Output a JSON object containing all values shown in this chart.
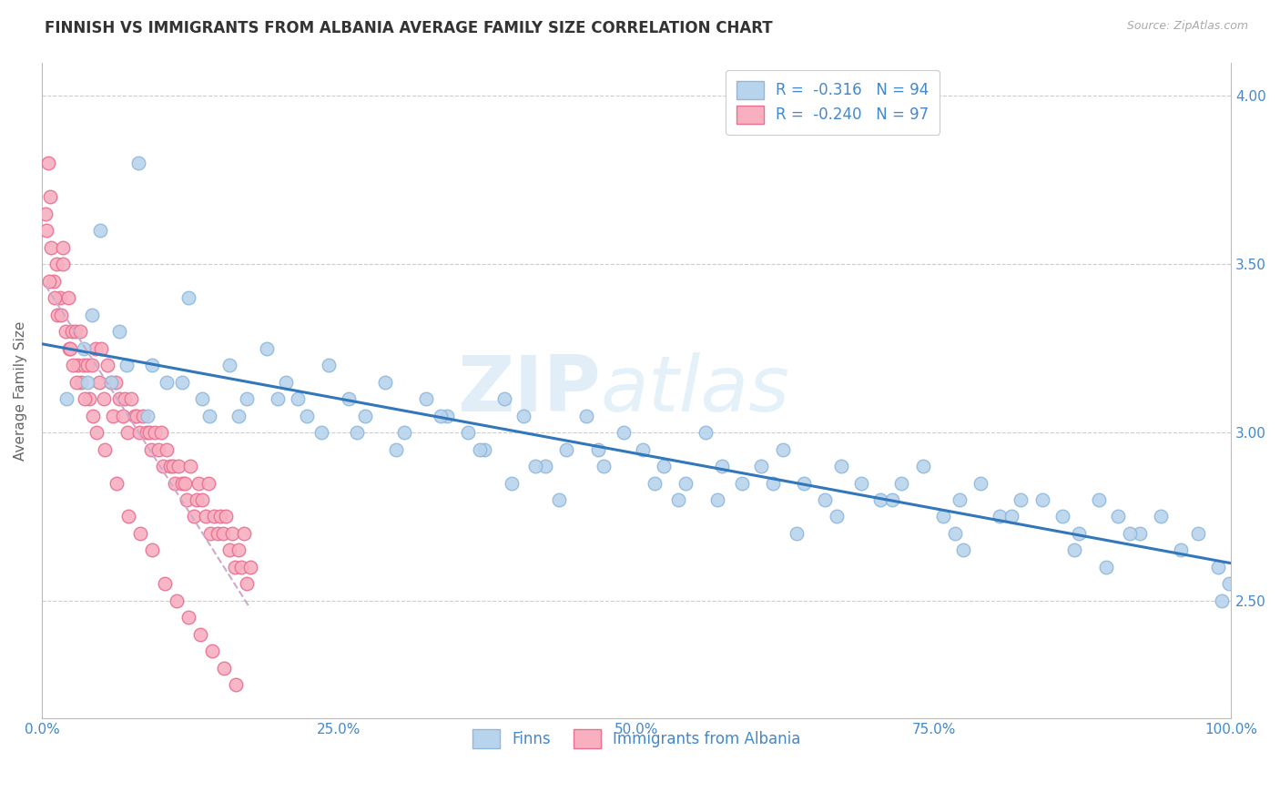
{
  "title": "FINNISH VS IMMIGRANTS FROM ALBANIA AVERAGE FAMILY SIZE CORRELATION CHART",
  "source_text": "Source: ZipAtlas.com",
  "ylabel": "Average Family Size",
  "xlim": [
    0.0,
    100.0
  ],
  "ylim": [
    2.15,
    4.1
  ],
  "yticks_right": [
    2.5,
    3.0,
    3.5,
    4.0
  ],
  "xticks": [
    0.0,
    25.0,
    50.0,
    75.0,
    100.0
  ],
  "xtick_labels": [
    "0.0%",
    "25.0%",
    "50.0%",
    "75.0%",
    "100.0%"
  ],
  "finns_color": "#b8d4ed",
  "finns_edge_color": "#90b8dd",
  "albania_color": "#f8b0c0",
  "albania_edge_color": "#e87090",
  "finns_line_color": "#3377bb",
  "albania_line_color": "#ccaacc",
  "legend_R1": "R =  -0.316",
  "legend_N1": "N = 94",
  "legend_R2": "R =  -0.240",
  "legend_N2": "N = 97",
  "legend_label1": "Finns",
  "legend_label2": "Immigrants from Albania",
  "watermark_zip": "ZIP",
  "watermark_atlas": "atlas",
  "axis_label_color": "#4488cc",
  "title_color": "#333333",
  "grid_color": "#cccccc",
  "background_color": "#ffffff",
  "finns_x": [
    2.1,
    3.5,
    4.2,
    5.8,
    7.1,
    8.9,
    10.5,
    12.3,
    14.1,
    15.8,
    17.2,
    18.9,
    20.5,
    22.3,
    24.1,
    25.8,
    27.2,
    28.9,
    30.5,
    32.3,
    34.1,
    35.8,
    37.2,
    38.9,
    40.5,
    42.3,
    44.1,
    45.8,
    47.2,
    48.9,
    50.5,
    52.3,
    54.1,
    55.8,
    57.2,
    58.9,
    60.5,
    62.3,
    64.1,
    65.8,
    67.2,
    68.9,
    70.5,
    72.3,
    74.1,
    75.8,
    77.2,
    78.9,
    80.5,
    82.3,
    84.1,
    85.8,
    87.2,
    88.9,
    90.5,
    92.3,
    94.1,
    95.8,
    97.2,
    98.9,
    6.5,
    9.3,
    11.8,
    16.5,
    19.8,
    23.5,
    29.8,
    33.5,
    36.8,
    41.5,
    46.8,
    51.5,
    56.8,
    61.5,
    66.8,
    71.5,
    76.8,
    81.5,
    86.8,
    91.5,
    3.8,
    13.5,
    26.5,
    39.5,
    53.5,
    77.5,
    89.5,
    99.2,
    4.9,
    8.1,
    21.5,
    43.5,
    63.5,
    99.8
  ],
  "finns_y": [
    3.1,
    3.25,
    3.35,
    3.15,
    3.2,
    3.05,
    3.15,
    3.4,
    3.05,
    3.2,
    3.1,
    3.25,
    3.15,
    3.05,
    3.2,
    3.1,
    3.05,
    3.15,
    3.0,
    3.1,
    3.05,
    3.0,
    2.95,
    3.1,
    3.05,
    2.9,
    2.95,
    3.05,
    2.9,
    3.0,
    2.95,
    2.9,
    2.85,
    3.0,
    2.9,
    2.85,
    2.9,
    2.95,
    2.85,
    2.8,
    2.9,
    2.85,
    2.8,
    2.85,
    2.9,
    2.75,
    2.8,
    2.85,
    2.75,
    2.8,
    2.8,
    2.75,
    2.7,
    2.8,
    2.75,
    2.7,
    2.75,
    2.65,
    2.7,
    2.6,
    3.3,
    3.2,
    3.15,
    3.05,
    3.1,
    3.0,
    2.95,
    3.05,
    2.95,
    2.9,
    2.95,
    2.85,
    2.8,
    2.85,
    2.75,
    2.8,
    2.7,
    2.75,
    2.65,
    2.7,
    3.15,
    3.1,
    3.0,
    2.85,
    2.8,
    2.65,
    2.6,
    2.5,
    3.6,
    3.8,
    3.1,
    2.8,
    2.7,
    2.55
  ],
  "albania_x": [
    0.3,
    0.5,
    0.8,
    1.0,
    1.2,
    1.5,
    1.8,
    2.0,
    2.2,
    2.5,
    2.8,
    3.0,
    3.2,
    3.5,
    3.8,
    4.0,
    4.2,
    4.5,
    4.8,
    5.0,
    5.2,
    5.5,
    5.8,
    6.0,
    6.2,
    6.5,
    6.8,
    7.0,
    7.2,
    7.5,
    7.8,
    8.0,
    8.2,
    8.5,
    8.8,
    9.0,
    9.2,
    9.5,
    9.8,
    10.0,
    10.2,
    10.5,
    10.8,
    11.0,
    11.2,
    11.5,
    11.8,
    12.0,
    12.2,
    12.5,
    12.8,
    13.0,
    13.2,
    13.5,
    13.8,
    14.0,
    14.2,
    14.5,
    14.8,
    15.0,
    15.2,
    15.5,
    15.8,
    16.0,
    16.2,
    16.5,
    16.8,
    17.0,
    17.2,
    17.5,
    1.3,
    2.3,
    3.3,
    4.3,
    5.3,
    6.3,
    7.3,
    8.3,
    9.3,
    10.3,
    11.3,
    12.3,
    13.3,
    14.3,
    15.3,
    16.3,
    0.6,
    1.6,
    2.6,
    3.6,
    4.6,
    0.4,
    0.7,
    1.1,
    1.8,
    2.4,
    2.9
  ],
  "albania_y": [
    3.65,
    3.8,
    3.55,
    3.45,
    3.5,
    3.4,
    3.5,
    3.3,
    3.4,
    3.3,
    3.3,
    3.2,
    3.3,
    3.2,
    3.2,
    3.1,
    3.2,
    3.25,
    3.15,
    3.25,
    3.1,
    3.2,
    3.15,
    3.05,
    3.15,
    3.1,
    3.05,
    3.1,
    3.0,
    3.1,
    3.05,
    3.05,
    3.0,
    3.05,
    3.0,
    3.0,
    2.95,
    3.0,
    2.95,
    3.0,
    2.9,
    2.95,
    2.9,
    2.9,
    2.85,
    2.9,
    2.85,
    2.85,
    2.8,
    2.9,
    2.75,
    2.8,
    2.85,
    2.8,
    2.75,
    2.85,
    2.7,
    2.75,
    2.7,
    2.75,
    2.7,
    2.75,
    2.65,
    2.7,
    2.6,
    2.65,
    2.6,
    2.7,
    2.55,
    2.6,
    3.35,
    3.25,
    3.15,
    3.05,
    2.95,
    2.85,
    2.75,
    2.7,
    2.65,
    2.55,
    2.5,
    2.45,
    2.4,
    2.35,
    2.3,
    2.25,
    3.45,
    3.35,
    3.2,
    3.1,
    3.0,
    3.6,
    3.7,
    3.4,
    3.55,
    3.25,
    3.15
  ]
}
